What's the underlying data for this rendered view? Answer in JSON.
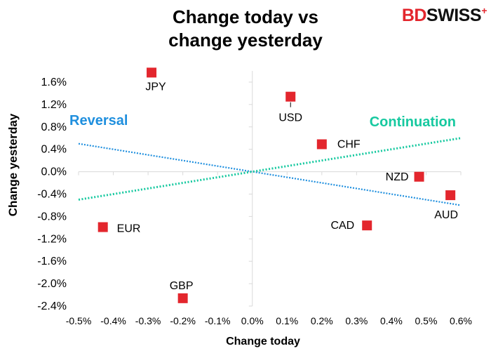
{
  "chart_data": {
    "type": "scatter",
    "title_line1": "Change today vs",
    "title_line2": "change yesterday",
    "xlabel": "Change today",
    "ylabel": "Change yesterday",
    "xlim": [
      -0.5,
      0.6
    ],
    "ylim": [
      -2.4,
      1.8
    ],
    "x_ticks": [
      "-0.5%",
      "-0.4%",
      "-0.3%",
      "-0.2%",
      "-0.1%",
      "0.0%",
      "0.1%",
      "0.2%",
      "0.3%",
      "0.4%",
      "0.5%",
      "0.6%"
    ],
    "y_ticks": [
      "1.6%",
      "1.2%",
      "0.8%",
      "0.4%",
      "0.0%",
      "-0.4%",
      "-0.8%",
      "-1.2%",
      "-1.6%",
      "-2.0%",
      "-2.4%"
    ],
    "grid": false,
    "marker_color": "#e3262d",
    "points": [
      {
        "label": "JPY",
        "x": -0.29,
        "y": 1.77
      },
      {
        "label": "USD",
        "x": 0.11,
        "y": 1.34
      },
      {
        "label": "CHF",
        "x": 0.2,
        "y": 0.49
      },
      {
        "label": "NZD",
        "x": 0.48,
        "y": -0.09
      },
      {
        "label": "AUD",
        "x": 0.57,
        "y": -0.42
      },
      {
        "label": "CAD",
        "x": 0.33,
        "y": -0.96
      },
      {
        "label": "EUR",
        "x": -0.43,
        "y": -0.99
      },
      {
        "label": "GBP",
        "x": -0.2,
        "y": -2.26
      }
    ],
    "reference_lines": [
      {
        "name": "Reversal",
        "color": "#1f8fde",
        "x": [
          -0.5,
          0.6
        ],
        "y": [
          0.5,
          -0.6
        ]
      },
      {
        "name": "Continuation",
        "color": "#17c9a0",
        "x": [
          -0.5,
          0.6
        ],
        "y": [
          -0.5,
          0.6
        ]
      }
    ]
  },
  "brand": {
    "part1": "BD",
    "part2": "SWISS",
    "mark": "+"
  }
}
